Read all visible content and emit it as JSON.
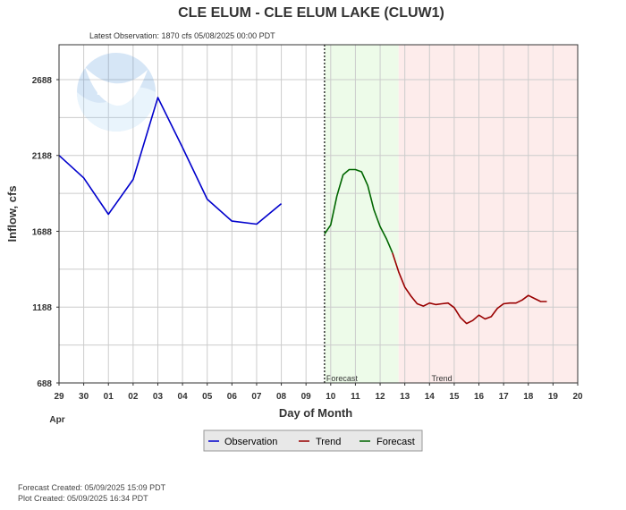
{
  "header": {
    "title": "CLE ELUM - CLE ELUM LAKE  (CLUW1)",
    "latest_observation": "Latest Observation: 1870 cfs 05/08/2025 00:00 PDT"
  },
  "footer": {
    "forecast_created": "Forecast Created: 05/09/2025 15:09 PDT",
    "plot_created": "Plot Created: 05/09/2025 16:34 PDT"
  },
  "colors": {
    "observation": "#0000cc",
    "trend": "#990000",
    "forecast": "#006600",
    "forecast_zone": "#edfbe9",
    "trend_zone": "#fdeceb",
    "grid": "#cccccc",
    "background": "#ffffff"
  },
  "chart_data": {
    "type": "line",
    "title": "CLE ELUM - CLE ELUM LAKE  (CLUW1)",
    "xlabel": "Day of Month",
    "ylabel": "Inflow, cfs",
    "month_label": "Apr",
    "x_ticks": [
      "29",
      "30",
      "01",
      "02",
      "03",
      "04",
      "05",
      "06",
      "07",
      "08",
      "09",
      "10",
      "11",
      "12",
      "13",
      "14",
      "15",
      "16",
      "17",
      "18",
      "19",
      "20"
    ],
    "y_ticks": [
      688,
      1188,
      1688,
      2188,
      2688
    ],
    "ylim": [
      688,
      2918
    ],
    "xlim": [
      0,
      21
    ],
    "grid": true,
    "legend_position": "bottom-center",
    "observation_marker_x": 10.75,
    "zones": [
      {
        "label": "Forecast",
        "from": 10.75,
        "to": 13.75,
        "color": "#edfbe9"
      },
      {
        "label": "Trend",
        "from": 13.75,
        "to": 21,
        "color": "#fdeceb"
      }
    ],
    "series": [
      {
        "name": "Observation",
        "color": "#0000cc",
        "points": [
          [
            0,
            2188
          ],
          [
            1,
            2040
          ],
          [
            2,
            1800
          ],
          [
            3,
            2030
          ],
          [
            4,
            2570
          ],
          [
            5,
            2240
          ],
          [
            6,
            1900
          ],
          [
            7,
            1755
          ],
          [
            8,
            1735
          ],
          [
            9,
            1870
          ]
        ]
      },
      {
        "name": "Forecast",
        "color": "#006600",
        "points": [
          [
            10.75,
            1670
          ],
          [
            11,
            1730
          ],
          [
            11.25,
            1920
          ],
          [
            11.5,
            2060
          ],
          [
            11.75,
            2095
          ],
          [
            12,
            2095
          ],
          [
            12.25,
            2080
          ],
          [
            12.5,
            1990
          ],
          [
            12.75,
            1830
          ],
          [
            13,
            1720
          ],
          [
            13.25,
            1640
          ],
          [
            13.5,
            1545
          ]
        ]
      },
      {
        "name": "Trend",
        "color": "#990000",
        "points": [
          [
            13.5,
            1545
          ],
          [
            13.75,
            1420
          ],
          [
            14,
            1320
          ],
          [
            14.25,
            1260
          ],
          [
            14.5,
            1210
          ],
          [
            14.75,
            1195
          ],
          [
            15,
            1215
          ],
          [
            15.25,
            1205
          ],
          [
            15.5,
            1210
          ],
          [
            15.75,
            1215
          ],
          [
            16,
            1185
          ],
          [
            16.25,
            1120
          ],
          [
            16.5,
            1080
          ],
          [
            16.75,
            1100
          ],
          [
            17,
            1135
          ],
          [
            17.25,
            1110
          ],
          [
            17.5,
            1125
          ],
          [
            17.75,
            1180
          ],
          [
            18,
            1210
          ],
          [
            18.25,
            1215
          ],
          [
            18.5,
            1215
          ],
          [
            18.75,
            1235
          ],
          [
            19,
            1265
          ],
          [
            19.25,
            1245
          ],
          [
            19.5,
            1225
          ],
          [
            19.75,
            1225
          ]
        ]
      }
    ]
  }
}
